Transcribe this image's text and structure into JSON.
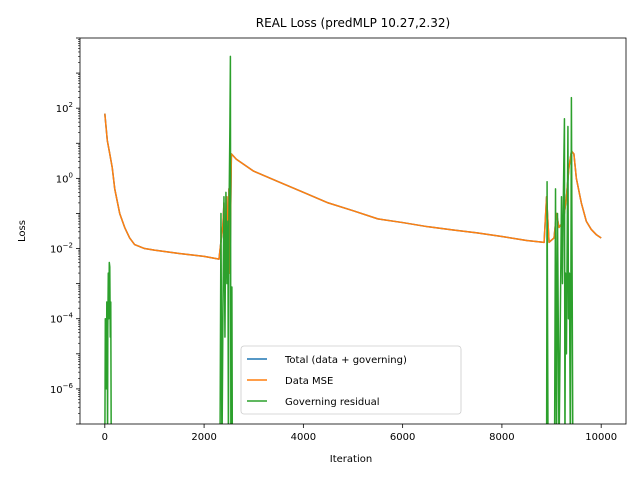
{
  "chart_data": {
    "type": "line",
    "title": "REAL Loss (predMLP 10.27,2.32)",
    "xlabel": "Iteration",
    "ylabel": "Loss",
    "yscale": "log",
    "xlim": [
      -500,
      10500
    ],
    "ylim": [
      1e-07,
      10000
    ],
    "grid": false,
    "legend_position": "lower-center",
    "x_ticks": [
      {
        "value": 0,
        "label": "0"
      },
      {
        "value": 2000,
        "label": "2000"
      },
      {
        "value": 4000,
        "label": "4000"
      },
      {
        "value": 6000,
        "label": "6000"
      },
      {
        "value": 8000,
        "label": "8000"
      },
      {
        "value": 10000,
        "label": "10000"
      }
    ],
    "y_ticks": [
      {
        "exp": -6,
        "label_base": "10",
        "label_exp": "−6"
      },
      {
        "exp": -4,
        "label_base": "10",
        "label_exp": "−4"
      },
      {
        "exp": -2,
        "label_base": "10",
        "label_exp": "−2"
      },
      {
        "exp": 0,
        "label_base": "10",
        "label_exp": "0"
      },
      {
        "exp": 2,
        "label_base": "10",
        "label_exp": "2"
      }
    ],
    "series": [
      {
        "name": "Total (data + governing)",
        "color": "#1f77b4",
        "points": [
          [
            0,
            70
          ],
          [
            50,
            12
          ],
          [
            100,
            5
          ],
          [
            150,
            2
          ],
          [
            200,
            0.5
          ],
          [
            300,
            0.1
          ],
          [
            400,
            0.04
          ],
          [
            500,
            0.02
          ],
          [
            600,
            0.013
          ],
          [
            800,
            0.01
          ],
          [
            1000,
            0.009
          ],
          [
            1500,
            0.0072
          ],
          [
            2000,
            0.006
          ],
          [
            2300,
            0.005
          ],
          [
            2380,
            0.05
          ],
          [
            2400,
            0.2
          ],
          [
            2420,
            0.003
          ],
          [
            2460,
            0.3
          ],
          [
            2480,
            0.004
          ],
          [
            2500,
            0.5
          ],
          [
            2520,
            0.002
          ],
          [
            2550,
            5
          ],
          [
            2650,
            3.5
          ],
          [
            3000,
            1.6
          ],
          [
            3500,
            0.8
          ],
          [
            4000,
            0.4
          ],
          [
            4500,
            0.2
          ],
          [
            5000,
            0.12
          ],
          [
            5500,
            0.07
          ],
          [
            6000,
            0.055
          ],
          [
            6500,
            0.042
          ],
          [
            7000,
            0.034
          ],
          [
            7500,
            0.028
          ],
          [
            8000,
            0.022
          ],
          [
            8500,
            0.017
          ],
          [
            8850,
            0.015
          ],
          [
            8900,
            0.3
          ],
          [
            8950,
            0.015
          ],
          [
            9050,
            0.02
          ],
          [
            9100,
            0.1
          ],
          [
            9150,
            0.04
          ],
          [
            9200,
            0.05
          ],
          [
            9250,
            0.08
          ],
          [
            9300,
            0.3
          ],
          [
            9350,
            2
          ],
          [
            9400,
            6
          ],
          [
            9450,
            5
          ],
          [
            9500,
            1
          ],
          [
            9600,
            0.2
          ],
          [
            9700,
            0.06
          ],
          [
            9800,
            0.035
          ],
          [
            9900,
            0.025
          ],
          [
            10000,
            0.02
          ]
        ]
      },
      {
        "name": "Data MSE",
        "color": "#ff7f0e",
        "points": [
          [
            0,
            70
          ],
          [
            50,
            12
          ],
          [
            100,
            5
          ],
          [
            150,
            2
          ],
          [
            200,
            0.5
          ],
          [
            300,
            0.1
          ],
          [
            400,
            0.04
          ],
          [
            500,
            0.02
          ],
          [
            600,
            0.013
          ],
          [
            800,
            0.01
          ],
          [
            1000,
            0.009
          ],
          [
            1500,
            0.0072
          ],
          [
            2000,
            0.006
          ],
          [
            2300,
            0.005
          ],
          [
            2380,
            0.05
          ],
          [
            2400,
            0.2
          ],
          [
            2420,
            0.003
          ],
          [
            2460,
            0.3
          ],
          [
            2480,
            0.004
          ],
          [
            2500,
            0.5
          ],
          [
            2520,
            0.002
          ],
          [
            2550,
            5
          ],
          [
            2650,
            3.5
          ],
          [
            3000,
            1.6
          ],
          [
            3500,
            0.8
          ],
          [
            4000,
            0.4
          ],
          [
            4500,
            0.2
          ],
          [
            5000,
            0.12
          ],
          [
            5500,
            0.07
          ],
          [
            6000,
            0.055
          ],
          [
            6500,
            0.042
          ],
          [
            7000,
            0.034
          ],
          [
            7500,
            0.028
          ],
          [
            8000,
            0.022
          ],
          [
            8500,
            0.017
          ],
          [
            8850,
            0.015
          ],
          [
            8900,
            0.3
          ],
          [
            8950,
            0.015
          ],
          [
            9050,
            0.02
          ],
          [
            9100,
            0.1
          ],
          [
            9150,
            0.04
          ],
          [
            9200,
            0.05
          ],
          [
            9250,
            0.08
          ],
          [
            9300,
            0.3
          ],
          [
            9350,
            2
          ],
          [
            9400,
            6
          ],
          [
            9450,
            5
          ],
          [
            9500,
            1
          ],
          [
            9600,
            0.2
          ],
          [
            9700,
            0.06
          ],
          [
            9800,
            0.035
          ],
          [
            9900,
            0.025
          ],
          [
            10000,
            0.02
          ]
        ]
      },
      {
        "name": "Governing residual",
        "color": "#2ca02c",
        "points": [
          [
            0,
            1e-08
          ],
          [
            10,
            0.0001
          ],
          [
            20,
            8e-05
          ],
          [
            30,
            1e-06
          ],
          [
            40,
            0.0003
          ],
          [
            50,
            0.0002
          ],
          [
            55,
            1e-08
          ],
          [
            60,
            5e-05
          ],
          [
            70,
            0.002
          ],
          [
            80,
            0.0001
          ],
          [
            90,
            0.004
          ],
          [
            100,
            0.003
          ],
          [
            110,
            3e-05
          ],
          [
            120,
            0.0003
          ],
          [
            130,
            1e-08
          ],
          [
            2320,
            1e-08
          ],
          [
            2340,
            0.1
          ],
          [
            2360,
            1e-08
          ],
          [
            2380,
            0.0002
          ],
          [
            2400,
            0.3
          ],
          [
            2420,
            3e-05
          ],
          [
            2440,
            0.4
          ],
          [
            2460,
            0.001
          ],
          [
            2480,
            0.06
          ],
          [
            2490,
            1e-08
          ],
          [
            2500,
            0.05
          ],
          [
            2520,
            30
          ],
          [
            2530,
            3000
          ],
          [
            2540,
            1e-08
          ],
          [
            2550,
            0.0005
          ],
          [
            2560,
            0.0008
          ],
          [
            2570,
            1e-08
          ],
          [
            8900,
            1e-08
          ],
          [
            8910,
            0.8
          ],
          [
            8930,
            1e-08
          ],
          [
            9060,
            1e-08
          ],
          [
            9080,
            0.5
          ],
          [
            9100,
            1e-08
          ],
          [
            9120,
            0.1
          ],
          [
            9140,
            1e-05
          ],
          [
            9150,
            1e-08
          ],
          [
            9200,
            0.3
          ],
          [
            9220,
            0.001
          ],
          [
            9240,
            0.5
          ],
          [
            9260,
            50
          ],
          [
            9270,
            1e-08
          ],
          [
            9280,
            0.002
          ],
          [
            9300,
            1e-05
          ],
          [
            9330,
            30
          ],
          [
            9340,
            0.0001
          ],
          [
            9360,
            0.002
          ],
          [
            9380,
            1e-08
          ],
          [
            9400,
            200
          ],
          [
            9430,
            1e-08
          ]
        ]
      }
    ]
  }
}
